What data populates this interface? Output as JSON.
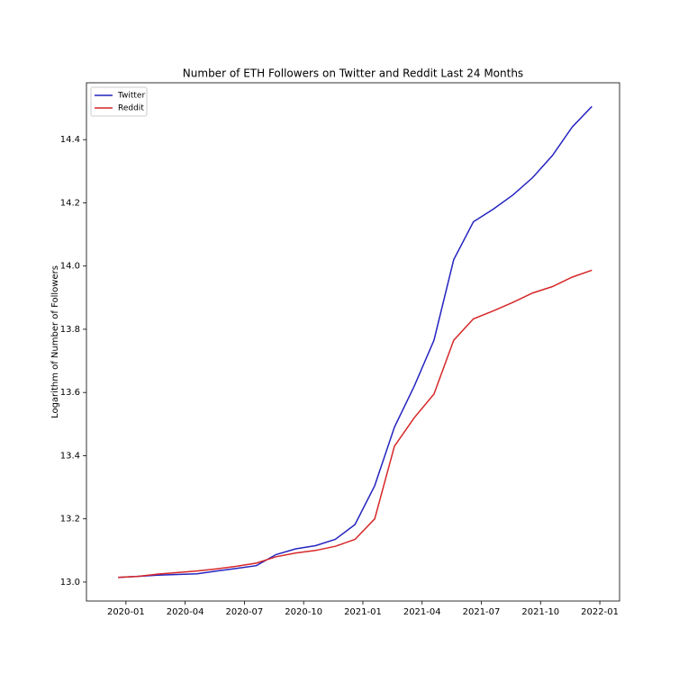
{
  "chart_data": {
    "type": "line",
    "title": "Number of ETH Followers on Twitter and Reddit Last 24 Months",
    "y_label": "Logarithm of Number of Followers",
    "x": [
      "2019-12",
      "2020-01",
      "2020-02",
      "2020-03",
      "2020-04",
      "2020-05",
      "2020-06",
      "2020-07",
      "2020-08",
      "2020-09",
      "2020-10",
      "2020-11",
      "2020-12",
      "2021-01",
      "2021-02",
      "2021-03",
      "2021-04",
      "2021-05",
      "2021-06",
      "2021-07",
      "2021-08",
      "2021-09",
      "2021-10",
      "2021-11",
      "2021-12"
    ],
    "series": [
      {
        "name": "Twitter",
        "color": "#2424c0",
        "values": [
          13.015,
          13.018,
          13.022,
          13.024,
          13.026,
          13.035,
          13.043,
          13.052,
          13.087,
          13.105,
          13.115,
          13.135,
          13.182,
          13.305,
          13.49,
          13.62,
          13.765,
          14.02,
          14.14,
          14.18,
          14.225,
          14.28,
          14.35,
          14.44,
          14.505
        ]
      },
      {
        "name": "Reddit",
        "color": "#d62728",
        "values": [
          13.015,
          13.018,
          13.025,
          13.03,
          13.035,
          13.042,
          13.05,
          13.06,
          13.08,
          13.092,
          13.1,
          13.113,
          13.135,
          13.2,
          13.43,
          13.52,
          13.595,
          13.765,
          13.833,
          13.858,
          13.885,
          13.915,
          13.935,
          13.965,
          13.987
        ]
      }
    ],
    "xlim": [
      "2019-11",
      "2022-02"
    ],
    "xticks": [
      "2020-01",
      "2020-04",
      "2020-07",
      "2020-10",
      "2021-01",
      "2021-04",
      "2021-07",
      "2021-10",
      "2022-01"
    ],
    "ylim": [
      12.94,
      14.58
    ],
    "yticks": [
      {
        "value": 13,
        "label": "13.0"
      },
      {
        "value": 13.2,
        "label": "13.2"
      },
      {
        "value": 13.4,
        "label": "13.4"
      },
      {
        "value": 13.6,
        "label": "13.6"
      },
      {
        "value": 13.8,
        "label": "13.8"
      },
      {
        "value": 14,
        "label": "14.0"
      },
      {
        "value": 14.2,
        "label": "14.2"
      },
      {
        "value": 14.4,
        "label": "14.4"
      }
    ],
    "legend": "upper left"
  }
}
